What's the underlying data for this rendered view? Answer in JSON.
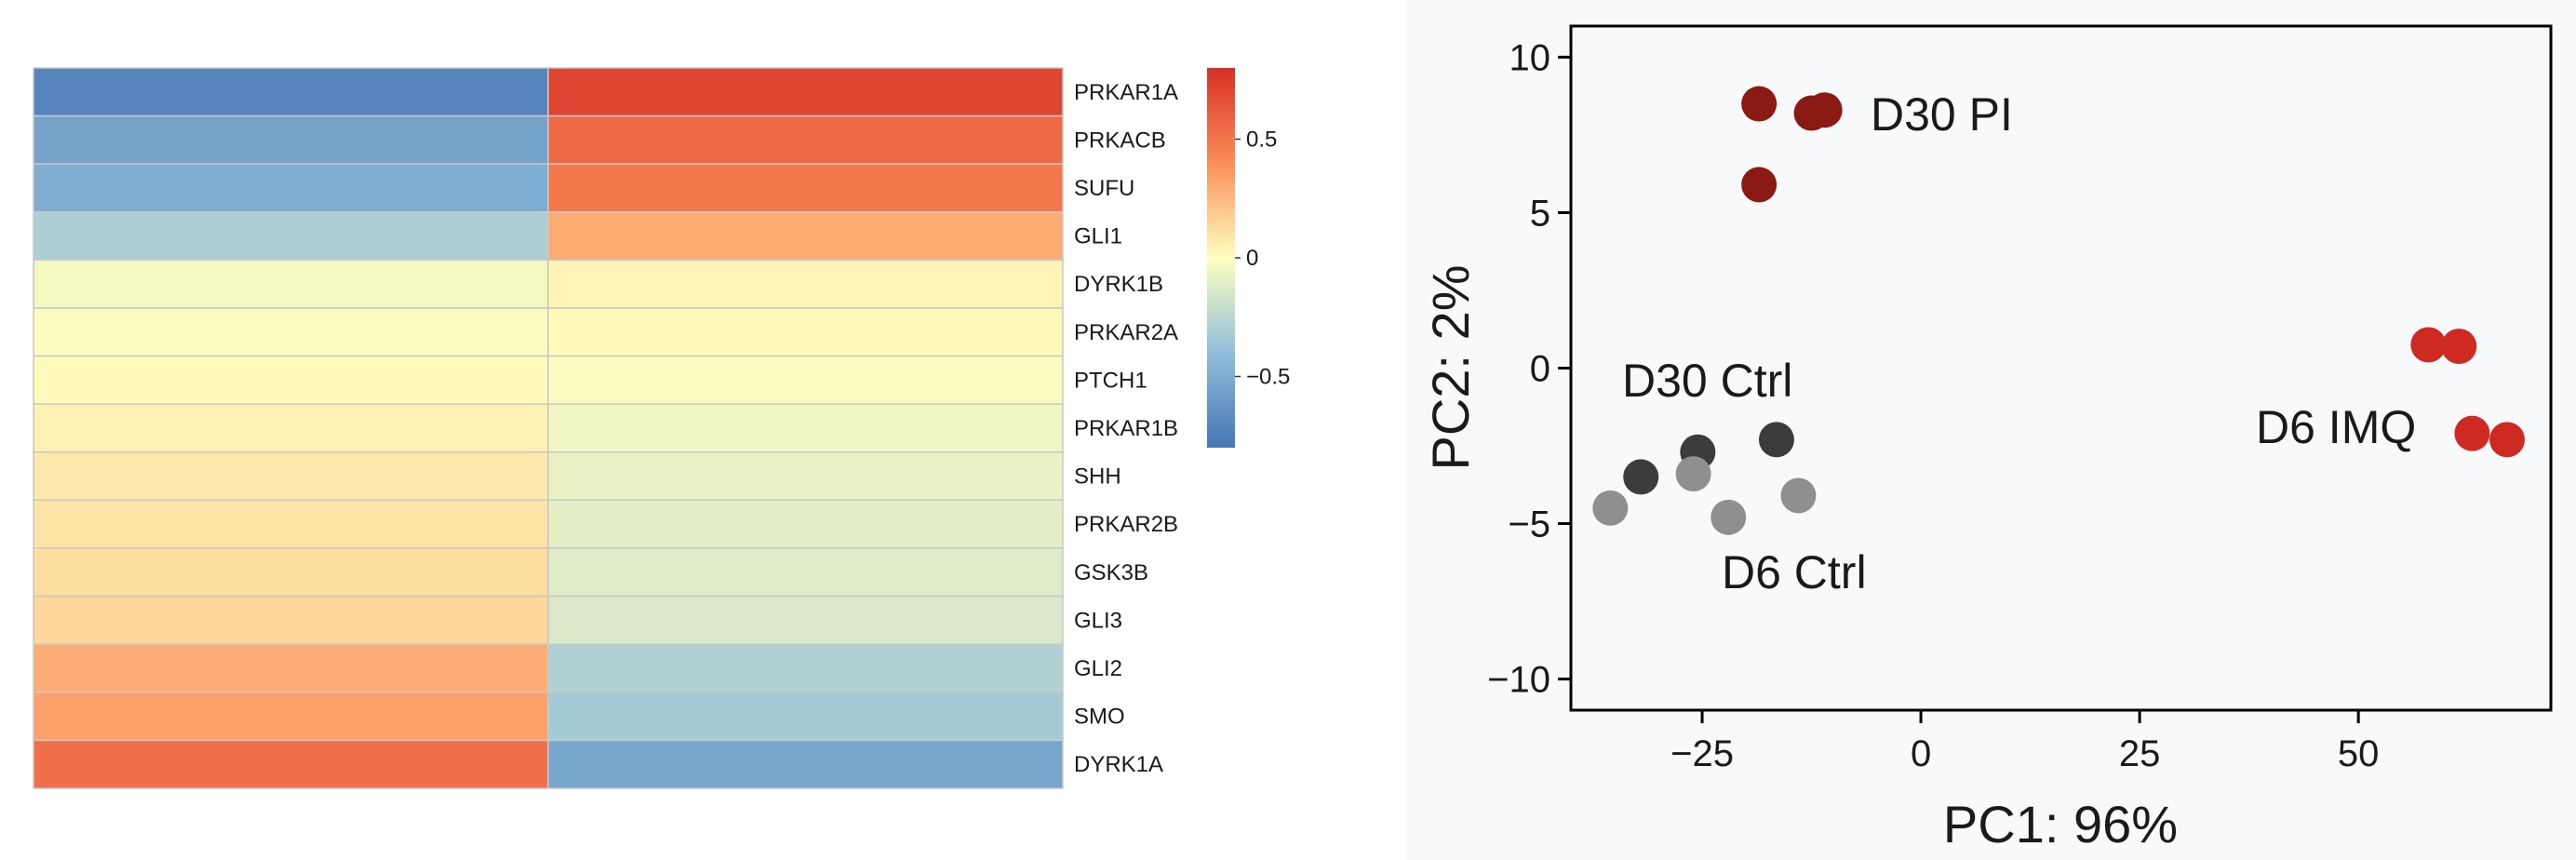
{
  "chart_data": [
    {
      "type": "heatmap",
      "rows": [
        "PRKAR1A",
        "PRKACB",
        "SUFU",
        "GLI1",
        "DYRK1B",
        "PRKAR2A",
        "PTCH1",
        "PRKAR1B",
        "SHH",
        "PRKAR2B",
        "GSK3B",
        "GLI3",
        "GLI2",
        "SMO",
        "DYRK1A"
      ],
      "columns": 2,
      "values": [
        [
          -0.71,
          0.71
        ],
        [
          -0.55,
          0.55
        ],
        [
          -0.49,
          0.49
        ],
        [
          -0.3,
          0.3
        ],
        [
          -0.04,
          0.04
        ],
        [
          -0.02,
          0.02
        ],
        [
          0.02,
          -0.02
        ],
        [
          0.05,
          -0.05
        ],
        [
          0.08,
          -0.08
        ],
        [
          0.1,
          -0.1
        ],
        [
          0.12,
          -0.12
        ],
        [
          0.14,
          -0.14
        ],
        [
          0.29,
          -0.29
        ],
        [
          0.33,
          -0.33
        ],
        [
          0.53,
          -0.53
        ]
      ],
      "colorbar": {
        "ticks": [
          0.5,
          0,
          -0.5
        ],
        "tick_labels": [
          "0.5",
          "0",
          "−0.5"
        ],
        "range": [
          -0.8,
          0.8
        ]
      },
      "colors": {
        "high": "#d73027",
        "mid": "#ffffbf",
        "low": "#4575b4"
      }
    },
    {
      "type": "scatter",
      "xlabel": "PC1: 96%",
      "ylabel": "PC2: 2%",
      "xlim": [
        -40,
        72
      ],
      "ylim": [
        -11,
        11
      ],
      "x_ticks": [
        -25,
        0,
        25,
        50
      ],
      "x_tick_labels": [
        "−25",
        "0",
        "25",
        "50"
      ],
      "y_ticks": [
        10,
        5,
        0,
        -5,
        -10
      ],
      "y_tick_labels": [
        "10",
        "5",
        "0",
        "−5",
        "−10"
      ],
      "grid": false,
      "series": [
        {
          "name": "D30 PI",
          "color": "#8b1a14",
          "points": [
            [
              -18.5,
              8.5
            ],
            [
              -12.5,
              8.2
            ],
            [
              -11,
              8.3
            ],
            [
              -18.5,
              5.9
            ]
          ]
        },
        {
          "name": "D6 IMQ",
          "color": "#cf2a22",
          "points": [
            [
              58,
              0.75
            ],
            [
              61.5,
              0.7
            ],
            [
              63,
              -2.1
            ],
            [
              67,
              -2.3
            ]
          ]
        },
        {
          "name": "D30 Ctrl",
          "color": "#3c3c3c",
          "points": [
            [
              -32,
              -3.5
            ],
            [
              -25.5,
              -2.7
            ],
            [
              -16.5,
              -2.3
            ]
          ]
        },
        {
          "name": "D6 Ctrl",
          "color": "#8f8f8f",
          "points": [
            [
              -35.5,
              -4.5
            ],
            [
              -26,
              -3.4
            ],
            [
              -22,
              -4.8
            ],
            [
              -14,
              -4.1
            ]
          ]
        }
      ]
    }
  ]
}
